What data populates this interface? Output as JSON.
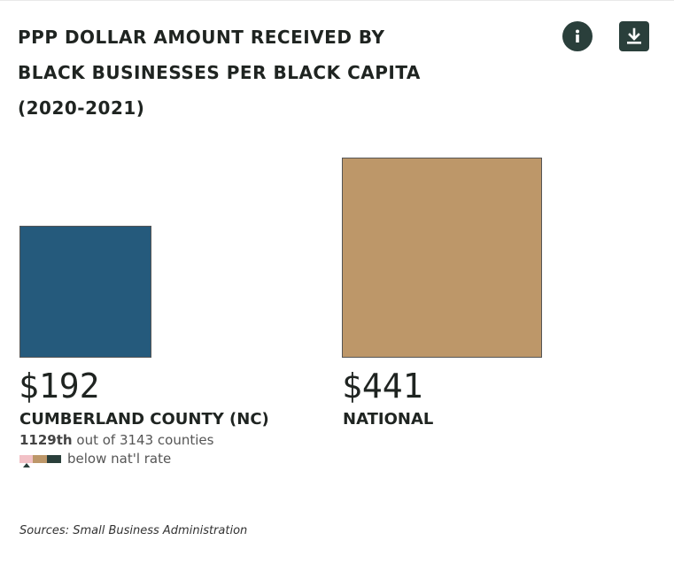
{
  "title_lines": [
    "PPP DOLLAR AMOUNT RECEIVED BY",
    "BLACK BUSINESSES PER BLACK CAPITA",
    "(2020-2021)"
  ],
  "colors": {
    "county": "#255a7c",
    "national": "#bd9769",
    "icon_bg": "#2a3f3b",
    "rate_low": "#f2c1c6",
    "rate_mid": "#bd9769",
    "rate_high": "#2a3f3b"
  },
  "icons": {
    "info": "info-icon",
    "download": "download-icon"
  },
  "chart_data": {
    "type": "bar",
    "title": "PPP DOLLAR AMOUNT RECEIVED BY BLACK BUSINESSES PER BLACK CAPITA (2020-2021)",
    "categories": [
      "CUMBERLAND COUNTY (NC)",
      "NATIONAL"
    ],
    "values": [
      192,
      441
    ],
    "value_labels": [
      "$192",
      "$441"
    ],
    "encoding": "square area proportional to value"
  },
  "county_stats": {
    "rank": "1129th",
    "rank_suffix": "out of 3143 counties",
    "rate_text": "below nat'l rate"
  },
  "source": "Sources: Small Business Administration"
}
